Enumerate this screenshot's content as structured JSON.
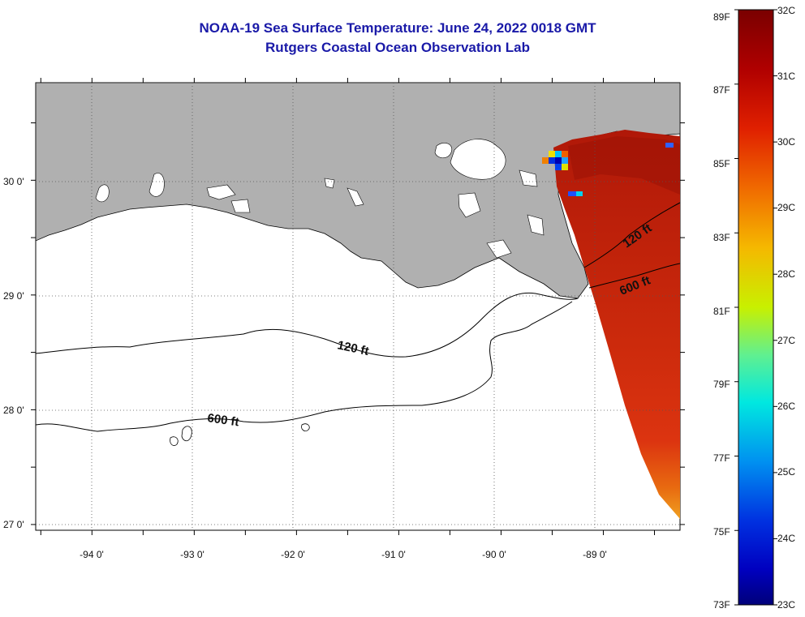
{
  "title": {
    "line1": "NOAA-19 Sea Surface Temperature:  June 24, 2022 0018 GMT",
    "line2": "Rutgers Coastal Ocean Observation Lab"
  },
  "map": {
    "lon_range": [
      -94.55,
      -88.25
    ],
    "lat_range": [
      26.95,
      30.85
    ],
    "lon_ticks": [
      {
        "value": -94,
        "label": "-94 0'"
      },
      {
        "value": -93,
        "label": "-93 0'"
      },
      {
        "value": -92,
        "label": "-92 0'"
      },
      {
        "value": -91,
        "label": "-91 0'"
      },
      {
        "value": -90,
        "label": "-90 0'"
      },
      {
        "value": -89,
        "label": "-89 0'"
      }
    ],
    "lat_ticks": [
      {
        "value": 30,
        "label": "30 0'"
      },
      {
        "value": 29,
        "label": "29 0'"
      },
      {
        "value": 28,
        "label": "28 0'"
      },
      {
        "value": 27,
        "label": "27 0'"
      }
    ],
    "contours": [
      {
        "label": "120 ft"
      },
      {
        "label": "600 ft"
      },
      {
        "label": "120 ft"
      },
      {
        "label": "600 ft"
      }
    ],
    "colors": {
      "land": "#b0b0b0",
      "sst_dominant": "#c8200c",
      "contour": "#000000"
    }
  },
  "colorbar": {
    "fahrenheit_labels": [
      "89F",
      "87F",
      "85F",
      "83F",
      "81F",
      "79F",
      "77F",
      "75F",
      "73F"
    ],
    "celsius_labels": [
      "32C",
      "31C",
      "30C",
      "29C",
      "28C",
      "27C",
      "26C",
      "25C",
      "24C",
      "23C"
    ],
    "min_c": 23,
    "max_c": 32
  }
}
